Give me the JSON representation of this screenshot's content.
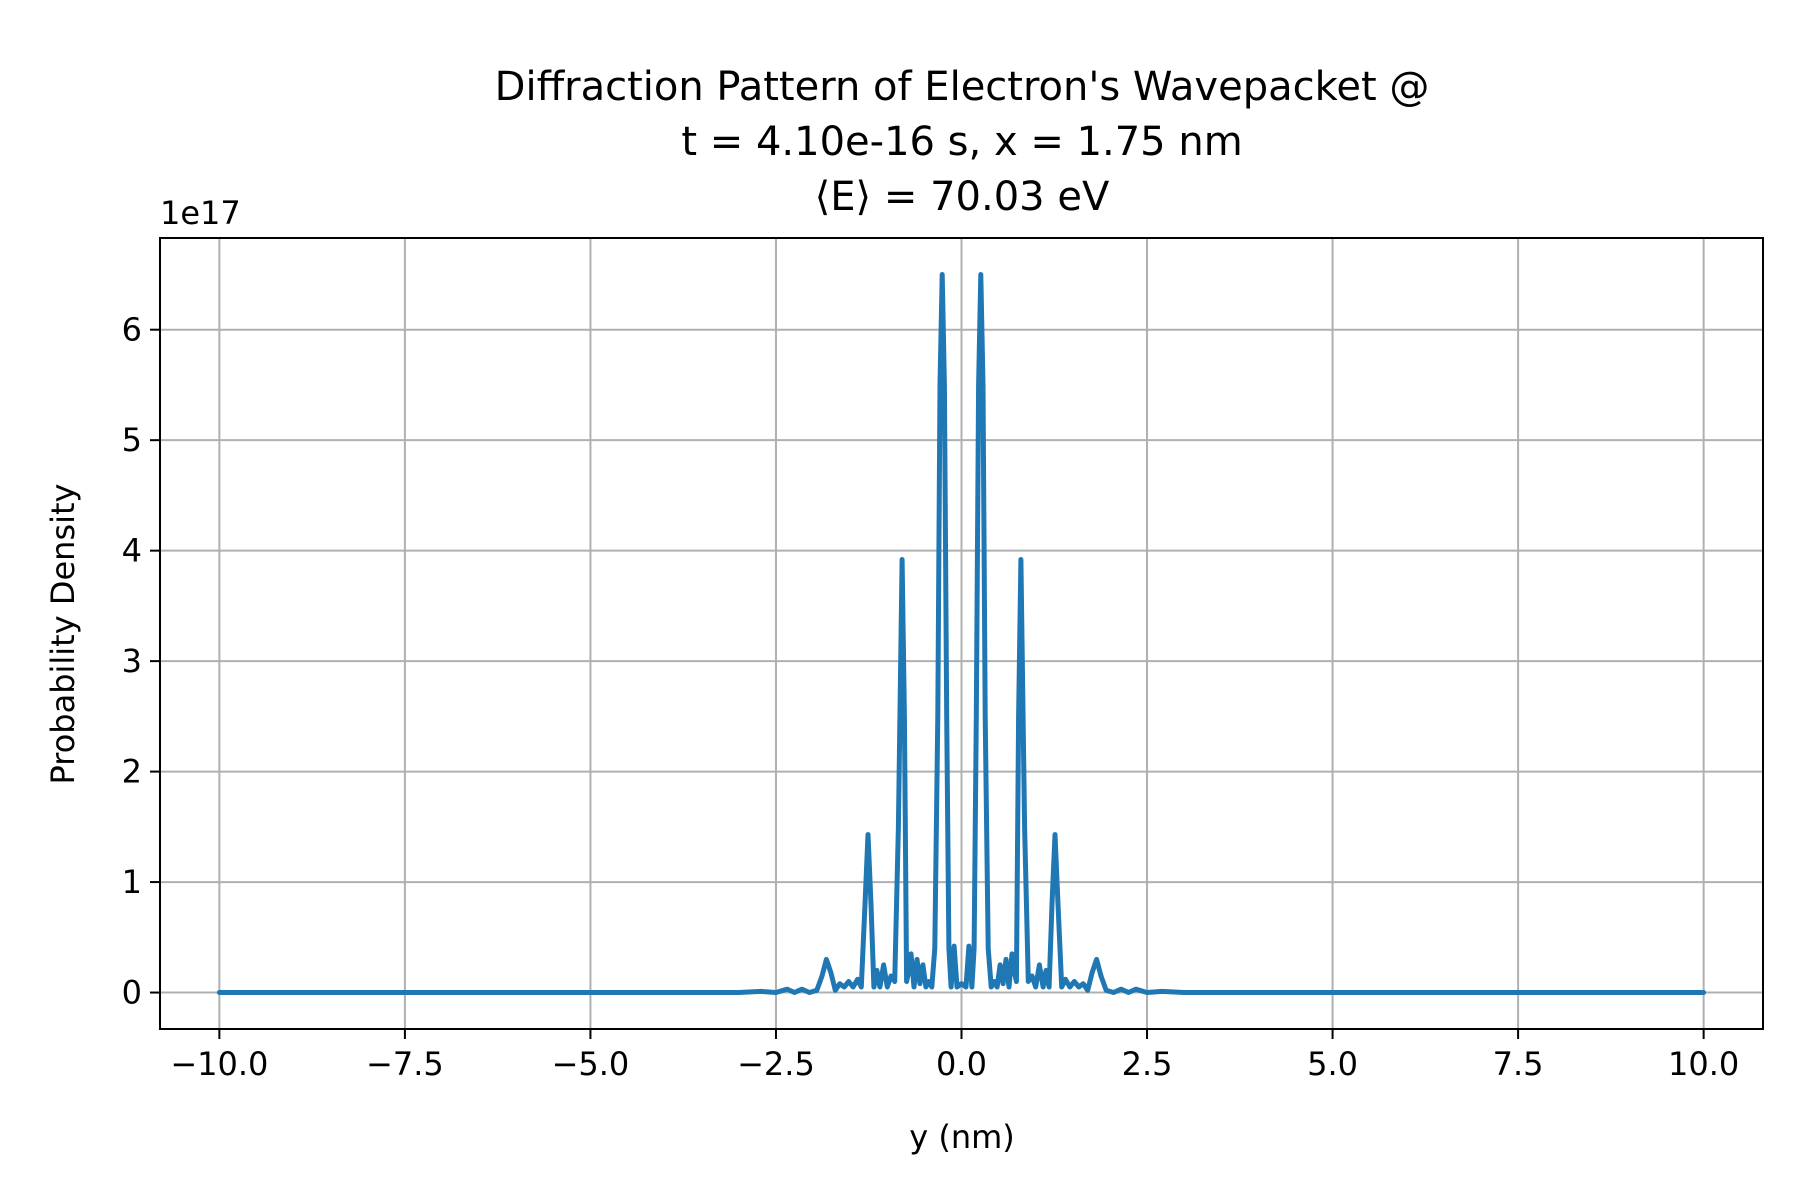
{
  "chart_data": {
    "type": "line",
    "title_lines": [
      "Diffraction Pattern of Electron's Wavepacket @",
      "t = 4.10e-16 s, x = 1.75 nm",
      "⟨E⟩ = 70.03 eV"
    ],
    "xlabel": "y (nm)",
    "ylabel": "Probability Density",
    "y_offset_label": "1e17",
    "xlim": [
      -10.8,
      10.8
    ],
    "ylim": [
      -0.33,
      6.83
    ],
    "y_scale_note": "values in units of 1e17",
    "x_ticks": [
      -10.0,
      -7.5,
      -5.0,
      -2.5,
      0.0,
      2.5,
      5.0,
      7.5,
      10.0
    ],
    "x_tick_labels": [
      "−10.0",
      "−7.5",
      "−5.0",
      "−2.5",
      "0.0",
      "2.5",
      "5.0",
      "7.5",
      "10.0"
    ],
    "y_ticks": [
      0,
      1,
      2,
      3,
      4,
      5,
      6
    ],
    "y_tick_labels": [
      "0",
      "1",
      "2",
      "3",
      "4",
      "5",
      "6"
    ],
    "grid": true,
    "series": [
      {
        "color": "#1f77b4",
        "x": [
          -10.0,
          -3.0,
          -2.7,
          -2.5,
          -2.35,
          -2.25,
          -2.15,
          -2.05,
          -1.95,
          -1.88,
          -1.82,
          -1.76,
          -1.7,
          -1.64,
          -1.58,
          -1.52,
          -1.46,
          -1.4,
          -1.35,
          -1.3,
          -1.26,
          -1.22,
          -1.18,
          -1.14,
          -1.1,
          -1.05,
          -1.0,
          -0.95,
          -0.9,
          -0.85,
          -0.8,
          -0.77,
          -0.74,
          -0.71,
          -0.68,
          -0.64,
          -0.6,
          -0.56,
          -0.52,
          -0.48,
          -0.44,
          -0.4,
          -0.36,
          -0.32,
          -0.29,
          -0.26,
          -0.23,
          -0.2,
          -0.17,
          -0.14,
          -0.1,
          -0.06,
          0.0,
          0.06,
          0.1,
          0.14,
          0.17,
          0.2,
          0.23,
          0.26,
          0.29,
          0.32,
          0.36,
          0.4,
          0.44,
          0.48,
          0.52,
          0.56,
          0.6,
          0.64,
          0.68,
          0.71,
          0.74,
          0.77,
          0.8,
          0.85,
          0.9,
          0.95,
          1.0,
          1.05,
          1.1,
          1.14,
          1.18,
          1.22,
          1.26,
          1.3,
          1.35,
          1.4,
          1.46,
          1.52,
          1.58,
          1.64,
          1.7,
          1.76,
          1.82,
          1.88,
          1.95,
          2.05,
          2.15,
          2.25,
          2.35,
          2.5,
          2.7,
          3.0,
          10.0
        ],
        "y": [
          0.0,
          0.0,
          0.01,
          0.0,
          0.03,
          0.0,
          0.03,
          0.0,
          0.02,
          0.15,
          0.3,
          0.18,
          0.02,
          0.08,
          0.05,
          0.1,
          0.05,
          0.12,
          0.05,
          0.8,
          1.43,
          0.8,
          0.05,
          0.2,
          0.05,
          0.25,
          0.05,
          0.15,
          0.1,
          1.5,
          3.92,
          2.5,
          0.1,
          0.2,
          0.35,
          0.05,
          0.3,
          0.08,
          0.25,
          0.05,
          0.1,
          0.05,
          0.4,
          2.5,
          5.5,
          6.5,
          5.5,
          2.5,
          0.4,
          0.05,
          0.42,
          0.05,
          0.08,
          0.05,
          0.42,
          0.05,
          0.4,
          2.5,
          5.5,
          6.5,
          5.5,
          2.5,
          0.4,
          0.05,
          0.1,
          0.05,
          0.25,
          0.08,
          0.3,
          0.05,
          0.35,
          0.2,
          0.1,
          2.5,
          3.92,
          1.5,
          0.1,
          0.15,
          0.05,
          0.25,
          0.05,
          0.2,
          0.05,
          0.8,
          1.43,
          0.8,
          0.05,
          0.12,
          0.05,
          0.1,
          0.05,
          0.08,
          0.02,
          0.18,
          0.3,
          0.15,
          0.02,
          0.0,
          0.03,
          0.0,
          0.03,
          0.0,
          0.01,
          0.0,
          0.0
        ]
      }
    ]
  }
}
